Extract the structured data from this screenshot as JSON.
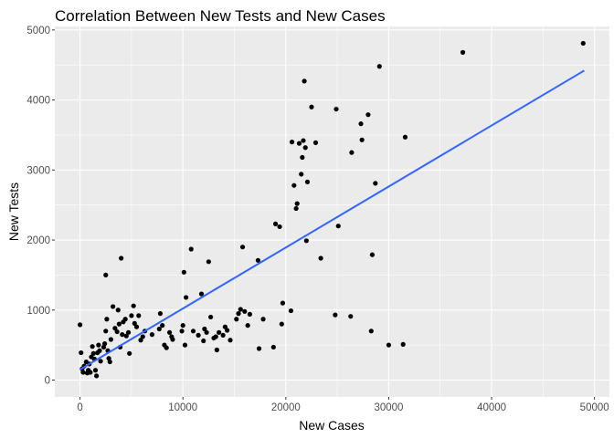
{
  "chart_data": {
    "type": "scatter",
    "title": "Correlation Between New Tests and New Cases",
    "xlabel": "New Cases",
    "ylabel": "New Tests",
    "xlim": [
      -2450,
      51450
    ],
    "ylim": [
      -241,
      5050
    ],
    "x_ticks": [
      0,
      10000,
      20000,
      30000,
      40000,
      50000
    ],
    "y_ticks": [
      0,
      1000,
      2000,
      3000,
      4000,
      5000
    ],
    "x_tick_labels": [
      "0",
      "10000",
      "20000",
      "30000",
      "40000",
      "50000"
    ],
    "y_tick_labels": [
      "0",
      "1000",
      "2000",
      "3000",
      "4000",
      "5000"
    ],
    "grid": true,
    "panel_background": "#ebebeb",
    "point_color": "#000000",
    "trend_color": "#3366ff",
    "trend_line": {
      "x": [
        0,
        49000
      ],
      "y": [
        150,
        4420
      ]
    },
    "points": [
      [
        0,
        790
      ],
      [
        100,
        390
      ],
      [
        200,
        160
      ],
      [
        300,
        110
      ],
      [
        400,
        200
      ],
      [
        600,
        260
      ],
      [
        700,
        100
      ],
      [
        800,
        140
      ],
      [
        900,
        230
      ],
      [
        1000,
        110
      ],
      [
        1100,
        330
      ],
      [
        1200,
        480
      ],
      [
        1300,
        380
      ],
      [
        1400,
        300
      ],
      [
        1500,
        140
      ],
      [
        1600,
        60
      ],
      [
        1700,
        390
      ],
      [
        1800,
        500
      ],
      [
        1900,
        420
      ],
      [
        2000,
        270
      ],
      [
        2300,
        470
      ],
      [
        2400,
        520
      ],
      [
        2500,
        700
      ],
      [
        2600,
        870
      ],
      [
        2700,
        420
      ],
      [
        2800,
        310
      ],
      [
        2900,
        260
      ],
      [
        3000,
        580
      ],
      [
        2500,
        1500
      ],
      [
        3200,
        1050
      ],
      [
        3400,
        740
      ],
      [
        3600,
        690
      ],
      [
        3700,
        1000
      ],
      [
        3800,
        800
      ],
      [
        3900,
        470
      ],
      [
        4000,
        1740
      ],
      [
        4100,
        650
      ],
      [
        4200,
        830
      ],
      [
        4400,
        870
      ],
      [
        4500,
        630
      ],
      [
        4700,
        680
      ],
      [
        4800,
        380
      ],
      [
        5000,
        920
      ],
      [
        5200,
        1060
      ],
      [
        5300,
        810
      ],
      [
        5500,
        760
      ],
      [
        5700,
        920
      ],
      [
        5900,
        570
      ],
      [
        6100,
        620
      ],
      [
        6300,
        700
      ],
      [
        7000,
        650
      ],
      [
        7700,
        730
      ],
      [
        7800,
        950
      ],
      [
        8000,
        780
      ],
      [
        8200,
        500
      ],
      [
        8400,
        460
      ],
      [
        8700,
        680
      ],
      [
        8900,
        620
      ],
      [
        9000,
        580
      ],
      [
        9900,
        700
      ],
      [
        10000,
        780
      ],
      [
        10100,
        1540
      ],
      [
        10200,
        500
      ],
      [
        10300,
        1180
      ],
      [
        10800,
        1870
      ],
      [
        11000,
        700
      ],
      [
        11500,
        640
      ],
      [
        11800,
        1230
      ],
      [
        12000,
        560
      ],
      [
        12100,
        730
      ],
      [
        12300,
        680
      ],
      [
        12500,
        1690
      ],
      [
        12700,
        900
      ],
      [
        13000,
        600
      ],
      [
        13200,
        620
      ],
      [
        13300,
        430
      ],
      [
        13500,
        680
      ],
      [
        13900,
        640
      ],
      [
        14100,
        760
      ],
      [
        14300,
        710
      ],
      [
        14600,
        570
      ],
      [
        15200,
        870
      ],
      [
        15400,
        950
      ],
      [
        15600,
        1010
      ],
      [
        15800,
        1900
      ],
      [
        16000,
        980
      ],
      [
        16300,
        780
      ],
      [
        16500,
        940
      ],
      [
        17300,
        1710
      ],
      [
        17400,
        450
      ],
      [
        17800,
        870
      ],
      [
        18800,
        470
      ],
      [
        19000,
        2230
      ],
      [
        19400,
        2190
      ],
      [
        19600,
        800
      ],
      [
        19700,
        1100
      ],
      [
        20500,
        990
      ],
      [
        20600,
        3400
      ],
      [
        20800,
        2780
      ],
      [
        21000,
        2450
      ],
      [
        21100,
        2520
      ],
      [
        21300,
        3380
      ],
      [
        21500,
        2940
      ],
      [
        21600,
        3180
      ],
      [
        21700,
        3420
      ],
      [
        21800,
        4270
      ],
      [
        21900,
        3320
      ],
      [
        22000,
        1990
      ],
      [
        22100,
        2830
      ],
      [
        22500,
        3900
      ],
      [
        22900,
        3390
      ],
      [
        23400,
        1740
      ],
      [
        24800,
        930
      ],
      [
        24900,
        3870
      ],
      [
        25100,
        2200
      ],
      [
        26300,
        910
      ],
      [
        26400,
        3250
      ],
      [
        27300,
        3660
      ],
      [
        27400,
        3430
      ],
      [
        28000,
        3790
      ],
      [
        28300,
        700
      ],
      [
        28400,
        1790
      ],
      [
        28700,
        2810
      ],
      [
        29100,
        4480
      ],
      [
        30000,
        500
      ],
      [
        31400,
        510
      ],
      [
        31600,
        3470
      ],
      [
        37200,
        4680
      ],
      [
        48900,
        4810
      ]
    ]
  }
}
